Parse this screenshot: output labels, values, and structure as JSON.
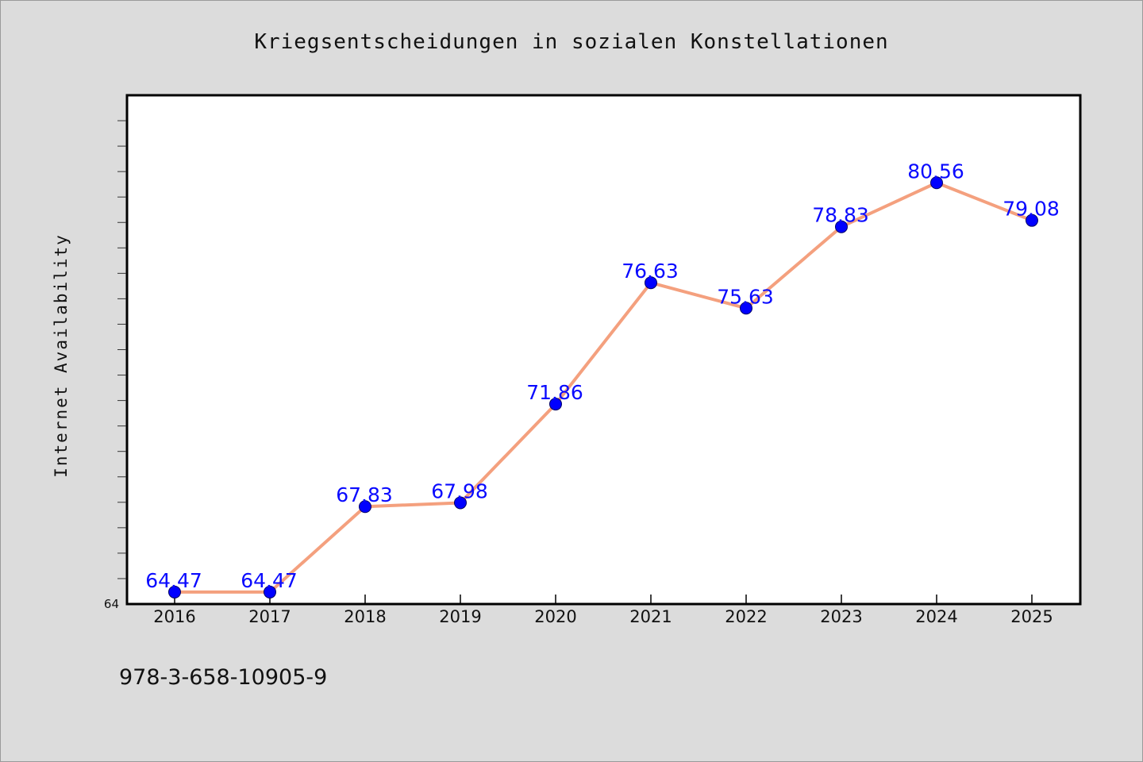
{
  "chart_data": {
    "type": "line",
    "title": "Kriegsentscheidungen in sozialen Konstellationen",
    "xlabel": "",
    "ylabel": "Internet Availability",
    "categories": [
      "2016",
      "2017",
      "2018",
      "2019",
      "2020",
      "2021",
      "2022",
      "2023",
      "2024",
      "2025"
    ],
    "series": [
      {
        "values": [
          64.47,
          64.47,
          67.83,
          67.98,
          71.86,
          76.63,
          75.63,
          78.83,
          80.56,
          79.08
        ],
        "labels": [
          "64.47",
          "64.47",
          "67.83",
          "67.98",
          "71.86",
          "76.63",
          "75.63",
          "78.83",
          "80.56",
          "79.08"
        ],
        "line_color": "#f4a07e",
        "marker_color": "#0000ff"
      }
    ],
    "ylim": [
      64,
      84
    ],
    "y_tick_labels": [
      "64"
    ],
    "grid": false,
    "legend": "none",
    "colors": {
      "background": "#dcdcdc",
      "plot_background": "#ffffff",
      "line": "#f4a07e",
      "marker": "#0000ff",
      "data_label": "#0a0aff"
    }
  },
  "footnote": "978-3-658-10905-9"
}
